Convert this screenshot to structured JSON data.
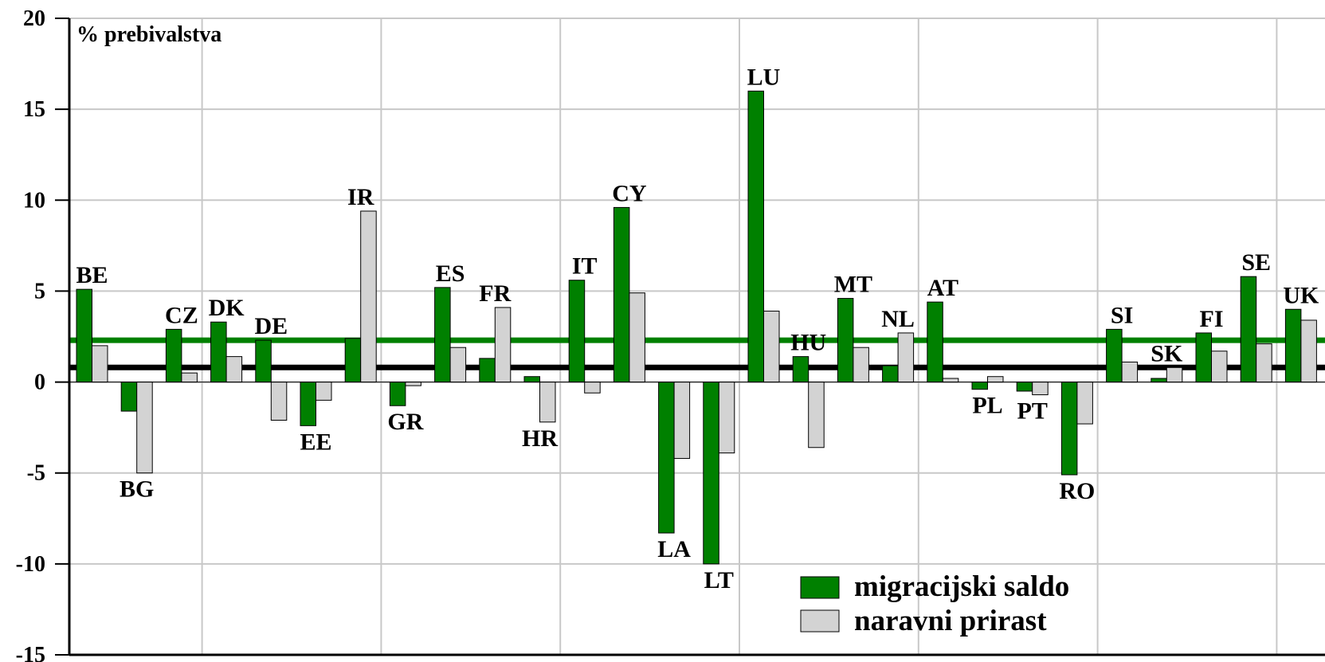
{
  "chart_data": {
    "type": "bar",
    "unit_label": "% prebivalstva",
    "ylim": [
      -15,
      20
    ],
    "yticks": [
      20,
      15,
      10,
      5,
      0,
      -5,
      -10,
      -15
    ],
    "grid": true,
    "legend_position": "bottom-right",
    "categories": [
      "BE",
      "BG",
      "CZ",
      "DK",
      "DE",
      "EE",
      "IR",
      "GR",
      "ES",
      "FR",
      "HR",
      "IT",
      "CY",
      "LA",
      "LT",
      "LU",
      "HU",
      "MT",
      "NL",
      "AT",
      "PL",
      "PT",
      "RO",
      "SI",
      "SK",
      "FI",
      "SE",
      "UK"
    ],
    "series": [
      {
        "name": "migracijski saldo",
        "color": "#008000",
        "values": [
          5.1,
          -1.6,
          2.9,
          3.3,
          2.3,
          -2.4,
          2.4,
          -1.3,
          5.2,
          1.3,
          0.3,
          5.6,
          9.6,
          -8.3,
          -10.0,
          16.0,
          1.4,
          4.6,
          0.9,
          4.4,
          -0.4,
          -0.5,
          -5.1,
          2.9,
          0.2,
          2.7,
          5.8,
          4.0
        ]
      },
      {
        "name": "naravni prirast",
        "color": "#d3d3d3",
        "values": [
          2.0,
          -5.0,
          0.5,
          1.4,
          -2.1,
          -1.0,
          9.4,
          -0.2,
          1.9,
          4.1,
          -2.2,
          -0.6,
          4.9,
          -4.2,
          -3.9,
          3.9,
          -3.6,
          1.9,
          2.7,
          0.2,
          0.3,
          -0.7,
          -2.3,
          1.1,
          0.8,
          1.7,
          2.1,
          3.4
        ]
      }
    ],
    "reference_lines": [
      {
        "name": "migracijski saldo",
        "value": 2.3,
        "color": "#008000"
      },
      {
        "name": "naravni prirast",
        "value": 0.8,
        "color": "#000000"
      }
    ]
  }
}
